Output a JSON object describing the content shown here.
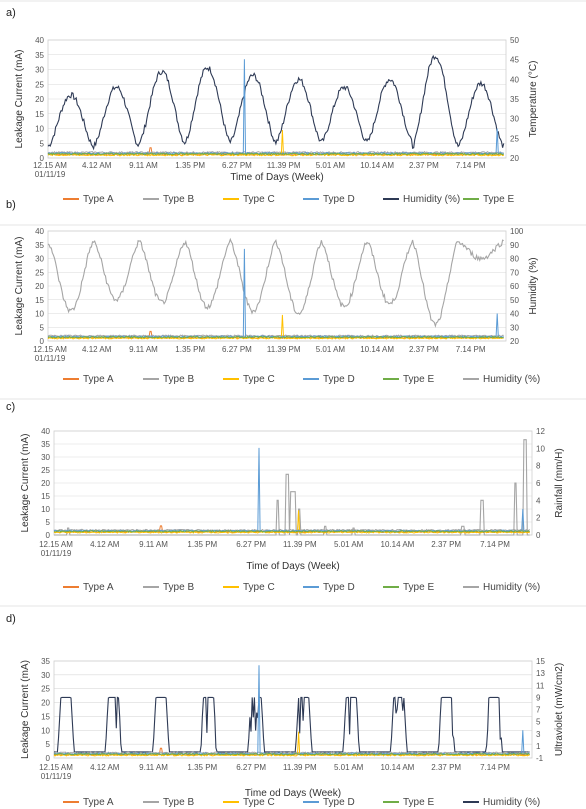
{
  "chart_data": [
    {
      "panel": "a)",
      "type": "line",
      "xlabel": "Time of Days (Week)",
      "ylabel": "Leakage Current (mA)",
      "y2label": "Temperature (°C)",
      "ylim": [
        0,
        40
      ],
      "yticks": [
        0,
        5,
        10,
        15,
        20,
        25,
        30,
        35,
        40
      ],
      "y2lim": [
        20,
        50
      ],
      "y2ticks": [
        20,
        25,
        30,
        35,
        40,
        45,
        50
      ],
      "x_tick_labels": [
        "12.15 AM",
        "4.12 AM",
        "9.11 AM",
        "1.35 PM",
        "6.27 PM",
        "11.39 PM",
        "5.01 AM",
        "10.14 AM",
        "2.37 PM",
        "7.14 PM"
      ],
      "x_start_date": "01/11/19",
      "secondary_series": "Temperature",
      "secondary_color": "#2e3a55",
      "secondary_peaks": [
        36,
        38,
        42,
        43,
        41,
        40,
        38,
        40,
        46,
        39
      ],
      "secondary_troughs": [
        23,
        23,
        24,
        24,
        24,
        24,
        24,
        24,
        23,
        23
      ],
      "legend": [
        "Type A",
        "Type B",
        "Type C",
        "Type D",
        "Humidity (%)",
        "Type E"
      ],
      "legend_colors": [
        "#ed7d31",
        "#a5a5a5",
        "#ffc000",
        "#5b9bd5",
        "#2e3a55",
        "#70ad47"
      ],
      "series": [
        {
          "name": "Type A",
          "color": "#ed7d31",
          "base": 1.2,
          "spikes": [
            [
              0.225,
              3.5
            ]
          ]
        },
        {
          "name": "Type B",
          "color": "#a5a5a5",
          "base": 1.9,
          "spikes": []
        },
        {
          "name": "Type C",
          "color": "#ffc000",
          "base": 1.0,
          "spikes": [
            [
              0.515,
              9.5
            ]
          ]
        },
        {
          "name": "Type D",
          "color": "#5b9bd5",
          "base": 1.6,
          "spikes": [
            [
              0.432,
              33.5
            ],
            [
              0.985,
              10
            ]
          ]
        },
        {
          "name": "Type E",
          "color": "#70ad47",
          "base": 1.4,
          "spikes": []
        }
      ]
    },
    {
      "panel": "b)",
      "type": "line",
      "xlabel": "",
      "ylabel": "Leakage Current (mA)",
      "y2label": "Humidity (%)",
      "ylim": [
        0,
        40
      ],
      "yticks": [
        0,
        5,
        10,
        15,
        20,
        25,
        30,
        35,
        40
      ],
      "y2lim": [
        20,
        100
      ],
      "y2ticks": [
        20,
        30,
        40,
        50,
        60,
        70,
        80,
        90,
        100
      ],
      "x_tick_labels": [
        "12.15 AM",
        "4.12 AM",
        "9.11 AM",
        "1.35 PM",
        "6.27 PM",
        "11.39 PM",
        "5.01 AM",
        "10.14 AM",
        "2.37 PM",
        "7.14 PM"
      ],
      "x_start_date": "01/11/19",
      "secondary_series": "Humidity",
      "secondary_color": "#a5a5a5",
      "secondary_peaks": [
        92,
        92,
        92,
        92,
        92,
        92,
        92,
        92,
        92,
        92
      ],
      "secondary_troughs": [
        42,
        50,
        48,
        45,
        42,
        40,
        45,
        47,
        32,
        80
      ],
      "legend": [
        "Type A",
        "Type B",
        "Type C",
        "Type D",
        "Type E",
        "Humidity (%)"
      ],
      "legend_colors": [
        "#ed7d31",
        "#a5a5a5",
        "#ffc000",
        "#5b9bd5",
        "#70ad47",
        "#a5a5a5"
      ],
      "series": [
        {
          "name": "Type A",
          "color": "#ed7d31",
          "base": 1.2,
          "spikes": [
            [
              0.225,
              3.5
            ]
          ]
        },
        {
          "name": "Type B",
          "color": "#a5a5a5",
          "base": 1.9,
          "spikes": []
        },
        {
          "name": "Type C",
          "color": "#ffc000",
          "base": 1.0,
          "spikes": [
            [
              0.515,
              9.5
            ]
          ]
        },
        {
          "name": "Type D",
          "color": "#5b9bd5",
          "base": 1.6,
          "spikes": [
            [
              0.432,
              33.5
            ],
            [
              0.985,
              10
            ]
          ]
        },
        {
          "name": "Type E",
          "color": "#70ad47",
          "base": 1.4,
          "spikes": []
        }
      ]
    },
    {
      "panel": "c)",
      "type": "line",
      "xlabel": "Time of Days (Week)",
      "ylabel": "Leakage Current (mA)",
      "y2label": "Rainfall (mm/H)",
      "ylim": [
        0,
        40
      ],
      "yticks": [
        0,
        5,
        10,
        15,
        20,
        25,
        30,
        35,
        40
      ],
      "y2lim": [
        0,
        12
      ],
      "y2ticks": [
        0,
        2,
        4,
        6,
        8,
        10,
        12
      ],
      "x_tick_labels": [
        "12.15 AM",
        "4.12 AM",
        "9.11 AM",
        "1.35 PM",
        "6.27 PM",
        "11.39 PM",
        "5.01 AM",
        "10.14 AM",
        "2.37 PM",
        "7.14 PM"
      ],
      "x_start_date": "01/11/19",
      "secondary_series": "Rainfall",
      "secondary_color": "#a5a5a5",
      "rain_events": [
        [
          0.03,
          0.8
        ],
        [
          0.47,
          4
        ],
        [
          0.49,
          7
        ],
        [
          0.5,
          5
        ],
        [
          0.505,
          5
        ],
        [
          0.515,
          3
        ],
        [
          0.57,
          1
        ],
        [
          0.63,
          0.8
        ],
        [
          0.86,
          1
        ],
        [
          0.9,
          4
        ],
        [
          0.97,
          6
        ],
        [
          0.99,
          11
        ]
      ],
      "legend": [
        "Type A",
        "Type B",
        "Type C",
        "Type D",
        "Type E",
        "Humidity (%)"
      ],
      "legend_colors": [
        "#ed7d31",
        "#a5a5a5",
        "#ffc000",
        "#5b9bd5",
        "#70ad47",
        "#a5a5a5"
      ],
      "series": [
        {
          "name": "Type A",
          "color": "#ed7d31",
          "base": 1.2,
          "spikes": [
            [
              0.225,
              3.5
            ]
          ]
        },
        {
          "name": "Type B",
          "color": "#a5a5a5",
          "base": 1.9,
          "spikes": []
        },
        {
          "name": "Type C",
          "color": "#ffc000",
          "base": 1.0,
          "spikes": [
            [
              0.515,
              9.5
            ]
          ]
        },
        {
          "name": "Type D",
          "color": "#5b9bd5",
          "base": 1.6,
          "spikes": [
            [
              0.432,
              33.5
            ],
            [
              0.985,
              10
            ]
          ]
        },
        {
          "name": "Type E",
          "color": "#70ad47",
          "base": 1.4,
          "spikes": []
        }
      ]
    },
    {
      "panel": "d)",
      "type": "line",
      "xlabel": "Time od Days (Week)",
      "ylabel": "Leakage Current (mA)",
      "y2label": "Ultraviolet (mW/cm2)",
      "ylim": [
        0,
        35
      ],
      "yticks": [
        0,
        5,
        10,
        15,
        20,
        25,
        30,
        35
      ],
      "y2lim": [
        -1,
        15
      ],
      "y2ticks": [
        -1,
        1,
        3,
        5,
        7,
        9,
        11,
        13,
        15
      ],
      "x_tick_labels": [
        "12.15 AM",
        "4.12 AM",
        "9.11 AM",
        "1.35 PM",
        "6.27 PM",
        "11.39 PM",
        "5.01 AM",
        "10.14 AM",
        "2.37 PM",
        "7.14 PM"
      ],
      "x_start_date": "01/11/19",
      "secondary_series": "Ultraviolet",
      "secondary_color": "#2e3a55",
      "uv_peak": 9,
      "uv_base": 0,
      "legend": [
        "Type A",
        "Type B",
        "Type C",
        "Type D",
        "Type E",
        "Humidity (%)"
      ],
      "legend_colors": [
        "#ed7d31",
        "#a5a5a5",
        "#ffc000",
        "#5b9bd5",
        "#70ad47",
        "#2e3a55"
      ],
      "series": [
        {
          "name": "Type A",
          "color": "#ed7d31",
          "base": 1.2,
          "spikes": [
            [
              0.225,
              3.5
            ]
          ]
        },
        {
          "name": "Type B",
          "color": "#a5a5a5",
          "base": 1.9,
          "spikes": []
        },
        {
          "name": "Type C",
          "color": "#ffc000",
          "base": 1.0,
          "spikes": [
            [
              0.515,
              9.5
            ]
          ]
        },
        {
          "name": "Type D",
          "color": "#5b9bd5",
          "base": 1.6,
          "spikes": [
            [
              0.432,
              33.5
            ],
            [
              0.985,
              10
            ]
          ]
        },
        {
          "name": "Type E",
          "color": "#70ad47",
          "base": 1.4,
          "spikes": []
        }
      ]
    }
  ]
}
